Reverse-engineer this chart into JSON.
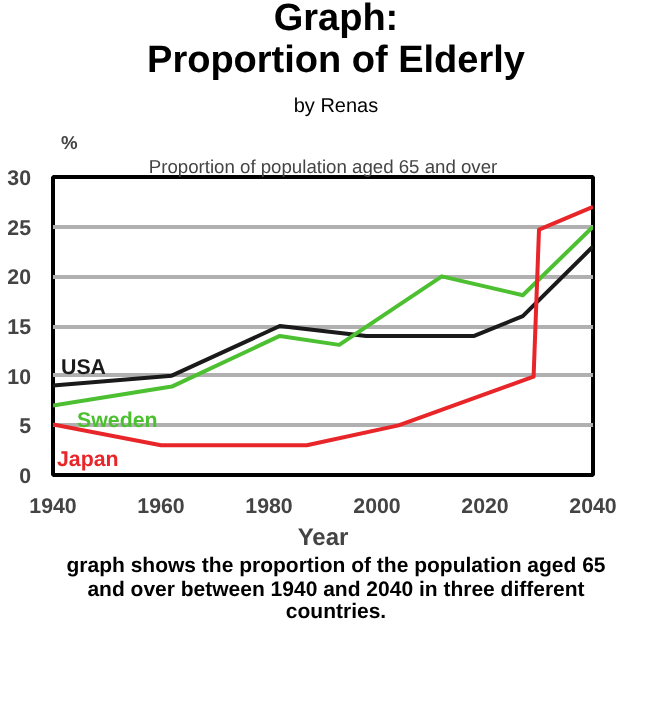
{
  "chart_data": {
    "type": "line",
    "title": "Graph:\nProportion of Elderly",
    "subtitle": "by Renas",
    "annotations": [
      "Proportion of population aged 65 and over",
      "graph shows the proportion of the population aged 65\nand over between 1940 and 2040 in three different\ncountries."
    ],
    "xlabel": "Year",
    "ylabel": "%",
    "series": [
      {
        "name": "USA",
        "color": "#1a1a1a",
        "x": [
          1940,
          1962,
          1982,
          1998,
          2018,
          2027,
          2040
        ],
        "values": [
          9,
          10,
          15,
          14,
          14,
          16,
          23
        ]
      },
      {
        "name": "Sweden",
        "color": "#4cc030",
        "x": [
          1940,
          1962,
          1982,
          1993,
          2012,
          2027,
          2040
        ],
        "values": [
          7,
          8.9,
          14,
          13.1,
          20,
          18.1,
          25
        ]
      },
      {
        "name": "Japan",
        "color": "#e8262a",
        "x": [
          1940,
          1960,
          1987,
          2004,
          2029,
          2030,
          2040
        ],
        "values": [
          5.1,
          3,
          3,
          5,
          9.9,
          24.7,
          27
        ]
      }
    ],
    "xlim": [
      1940,
      2040
    ],
    "xticks": [
      1940,
      1960,
      1980,
      2000,
      2020,
      2040
    ],
    "ylim": [
      0,
      30
    ],
    "yticks": [
      0,
      5,
      10,
      15,
      20,
      25,
      30
    ],
    "grid": "y",
    "legend": false,
    "marker": "none",
    "line_style": "solid"
  }
}
